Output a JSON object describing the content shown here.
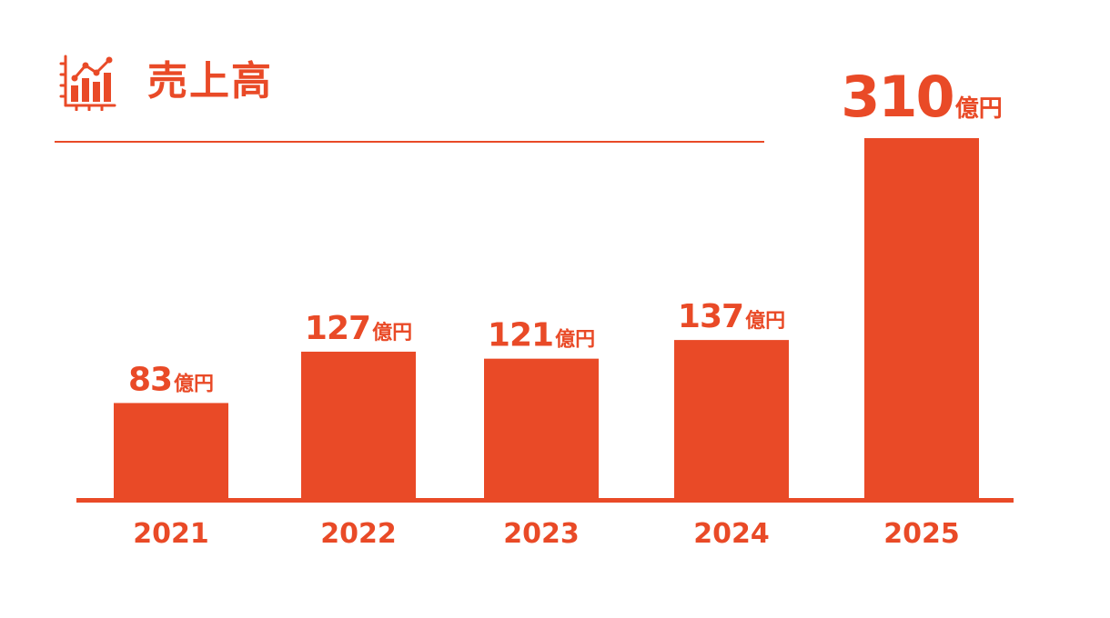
{
  "header": {
    "title": "売上高",
    "icon": "line-bar-chart-icon"
  },
  "colors": {
    "accent": "#E94A27",
    "background": "#FFFFFF"
  },
  "chart_data": {
    "type": "bar",
    "title": "売上高",
    "categories": [
      "2021",
      "2022",
      "2023",
      "2024",
      "2025"
    ],
    "series": [
      {
        "values": [
          83,
          127,
          121,
          137,
          310
        ]
      }
    ],
    "unit": "億円",
    "data_labels": [
      "83",
      "127",
      "121",
      "137",
      "310"
    ],
    "ylim": [
      0,
      310
    ],
    "grid": false,
    "legend": "none"
  }
}
